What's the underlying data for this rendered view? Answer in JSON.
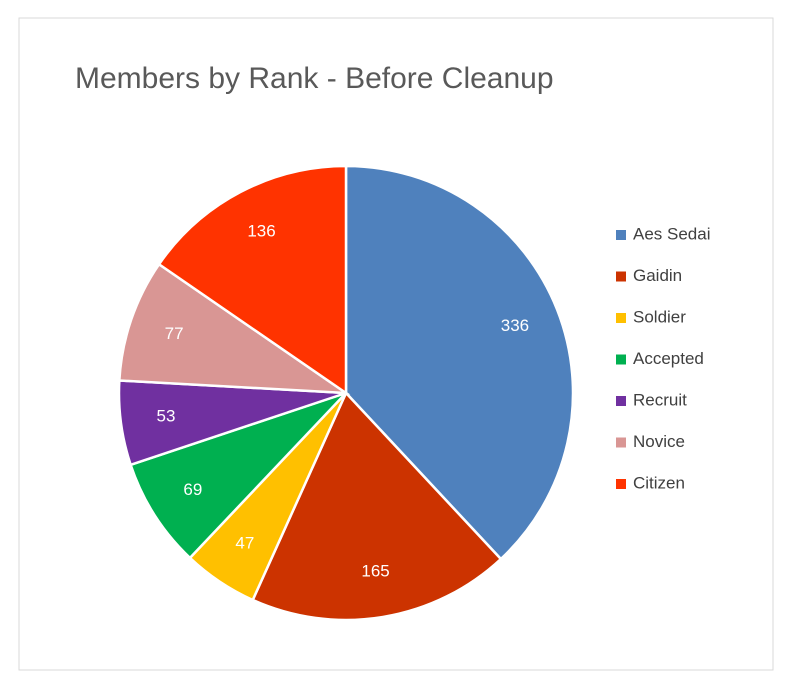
{
  "chart_data": {
    "type": "pie",
    "title": "Members by Rank - Before Cleanup",
    "categories": [
      "Aes Sedai",
      "Gaidin",
      "Soldier",
      "Accepted",
      "Recruit",
      "Novice",
      "Citizen"
    ],
    "values": [
      336,
      165,
      47,
      69,
      53,
      77,
      136
    ],
    "colors": [
      "#4f81bd",
      "#cc3300",
      "#ffc000",
      "#00b050",
      "#7030a0",
      "#d99694",
      "#ff3300"
    ],
    "legend": "right"
  }
}
